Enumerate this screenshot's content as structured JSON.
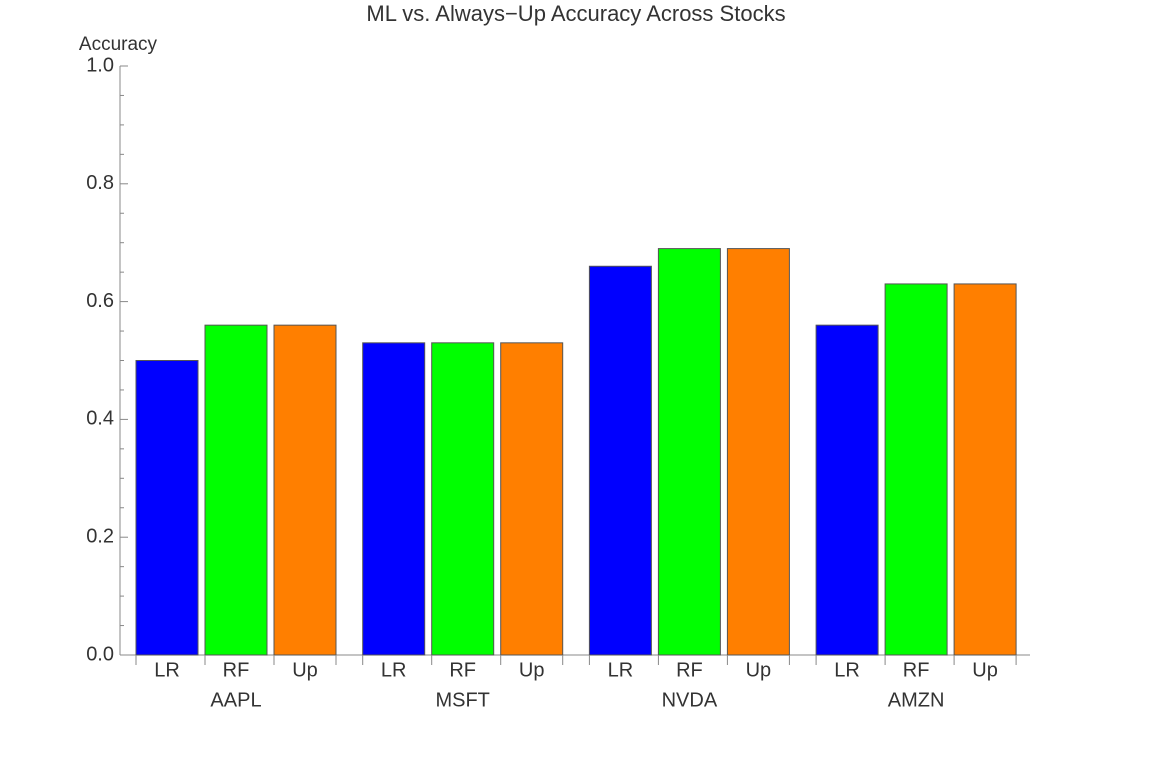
{
  "chart_data": {
    "type": "bar",
    "title": "ML vs. Always−Up Accuracy Across Stocks",
    "y_label": "Accuracy",
    "categories": [
      "AAPL",
      "MSFT",
      "NVDA",
      "AMZN"
    ],
    "series": [
      {
        "name": "LR",
        "color": "#0000ff",
        "values": [
          0.5,
          0.53,
          0.66,
          0.56
        ]
      },
      {
        "name": "RF",
        "color": "#00ff00",
        "values": [
          0.56,
          0.53,
          0.69,
          0.63
        ]
      },
      {
        "name": "Up",
        "color": "#ff7f00",
        "values": [
          0.56,
          0.53,
          0.69,
          0.63
        ]
      }
    ],
    "ylim": [
      0,
      1
    ],
    "yticks": [
      {
        "value": 0,
        "label": "0.0"
      },
      0.2,
      0.4,
      0.6,
      0.8,
      {
        "value": 1,
        "label": "1.0"
      }
    ],
    "yminor_ticks": [
      0.05,
      0.1,
      0.15,
      0.25,
      0.3,
      0.35,
      0.45,
      0.5,
      0.55,
      0.65,
      0.7,
      0.75,
      0.85,
      0.9,
      0.95
    ],
    "grid": false
  }
}
